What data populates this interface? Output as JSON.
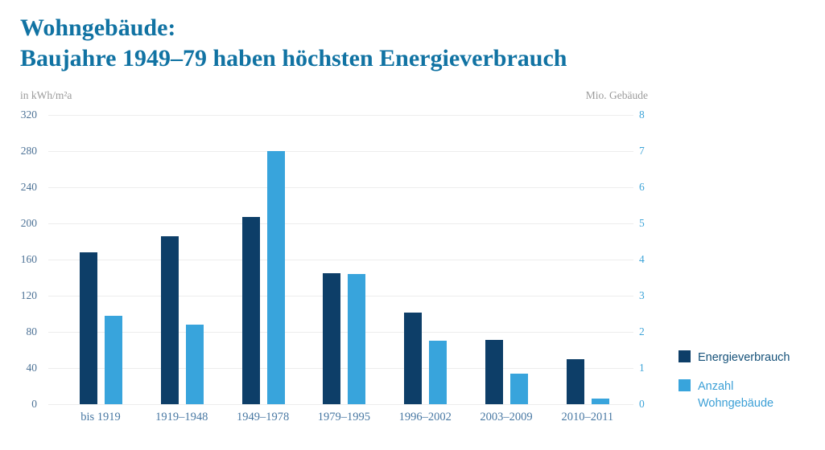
{
  "header": {
    "title_line1": "Wohngebäude:",
    "title_line2": "Baujahre 1949–79 haben höchsten Energieverbrauch"
  },
  "chart_data": {
    "type": "bar",
    "categories": [
      "bis 1919",
      "1919–1948",
      "1949–1978",
      "1979–1995",
      "1996–2002",
      "2003–2009",
      "2010–2011"
    ],
    "series": [
      {
        "name": "Energieverbrauch",
        "axis": "left",
        "unit": "kWh/m²a",
        "color": "#0d3e68",
        "values": [
          168,
          186,
          207,
          145,
          101,
          71,
          50
        ]
      },
      {
        "name": "Anzahl Wohngebäude",
        "axis": "right",
        "unit": "Mio. Gebäude",
        "color": "#38a4dc",
        "values": [
          2.45,
          2.2,
          7.0,
          3.6,
          1.75,
          0.85,
          0.15
        ]
      }
    ],
    "left_axis": {
      "label": "in kWh/m²a",
      "min": 0,
      "max": 320,
      "ticks": [
        0,
        40,
        80,
        120,
        160,
        200,
        240,
        280,
        320
      ]
    },
    "right_axis": {
      "label": "Mio. Gebäude",
      "min": 0,
      "max": 8,
      "ticks": [
        0,
        1,
        2,
        3,
        4,
        5,
        6,
        7,
        8
      ]
    },
    "grid": true,
    "legend_position": "right"
  },
  "legend": {
    "items": [
      {
        "label": "Energieverbrauch"
      },
      {
        "label": "Anzahl\nWohngebäude"
      }
    ]
  },
  "colors": {
    "title": "#1173a3",
    "unit": "#9b9b9b",
    "grid": "#ededed",
    "tickL": "#4d7296",
    "tickR": "#3ea4d8",
    "cat": "#4878a3",
    "legendDark": "#155179",
    "legendLight": "#3b9fd6",
    "barDark": "#0d3e68",
    "barLight": "#38a4dc"
  }
}
